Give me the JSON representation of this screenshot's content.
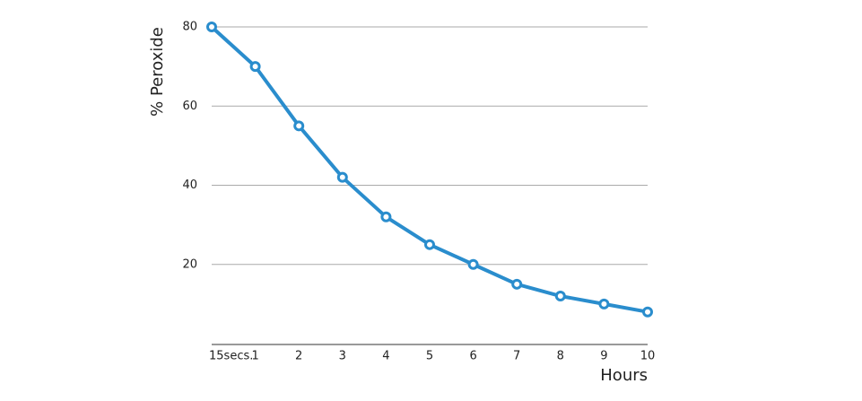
{
  "chart_data": {
    "type": "line",
    "categories": [
      "15secs.",
      "1",
      "2",
      "3",
      "4",
      "5",
      "6",
      "7",
      "8",
      "9",
      "10"
    ],
    "series": [
      {
        "color": "#2a8dcd",
        "values": [
          80,
          70,
          55,
          42,
          32,
          25,
          20,
          15,
          12,
          10,
          8
        ]
      }
    ],
    "ylim": [
      0,
      80
    ],
    "yticks": [
      20,
      40,
      60,
      80
    ],
    "grid": true,
    "y_label": "% Peroxide",
    "x_label": "Hours"
  }
}
